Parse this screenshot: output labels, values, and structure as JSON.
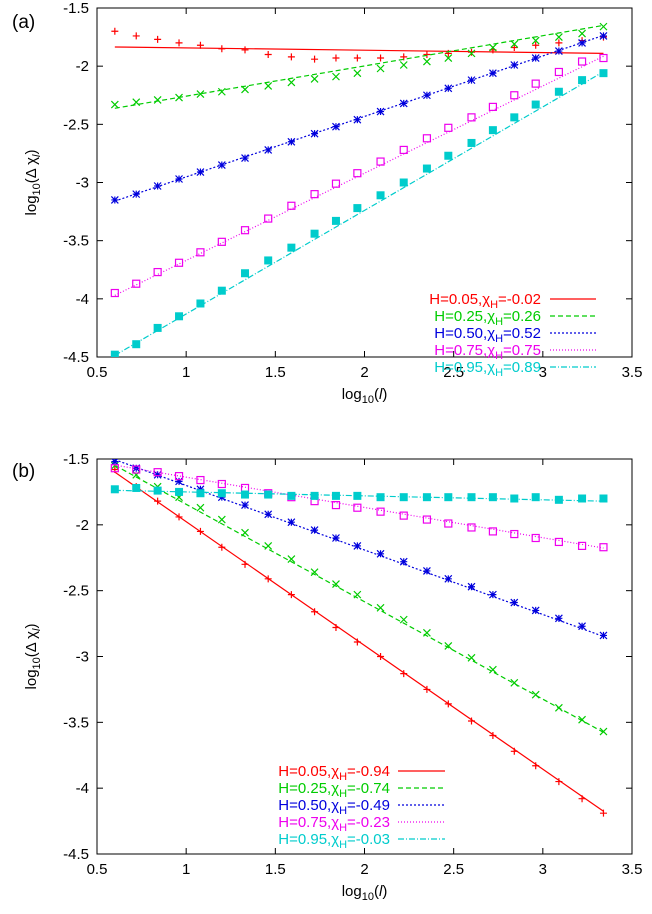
{
  "chart_data": [
    {
      "panel_label": "(a)",
      "type": "scatter",
      "xlabel": "log10(l)",
      "ylabel": "log10(Δ χl)",
      "xlim": [
        0.5,
        3.5
      ],
      "ylim": [
        -4.5,
        -1.5
      ],
      "xticks": [
        "0.5",
        "1",
        "1.5",
        "2",
        "2.5",
        "3",
        "3.5"
      ],
      "yticks": [
        "-1.5",
        "-2",
        "-2.5",
        "-3",
        "-3.5",
        "-4",
        "-4.5"
      ],
      "legend_position": "bottom-right",
      "grid": false,
      "x": [
        0.6,
        0.72,
        0.84,
        0.96,
        1.08,
        1.2,
        1.33,
        1.46,
        1.59,
        1.72,
        1.84,
        1.96,
        2.09,
        2.22,
        2.35,
        2.47,
        2.6,
        2.72,
        2.84,
        2.96,
        3.09,
        3.22,
        3.34
      ],
      "series": [
        {
          "label": "H=0.05,",
          "chi": "χ",
          "sub": "H",
          "value": "=-0.02",
          "color": "#ff0000",
          "marker": "plus",
          "dash": "",
          "fit": [
            -1.823,
            -0.02
          ],
          "values": [
            -1.7,
            -1.74,
            -1.77,
            -1.8,
            -1.82,
            -1.85,
            -1.86,
            -1.9,
            -1.92,
            -1.94,
            -1.93,
            -1.93,
            -1.93,
            -1.92,
            -1.9,
            -1.89,
            -1.88,
            -1.86,
            -1.84,
            -1.82,
            -1.8,
            -1.78,
            -1.75
          ]
        },
        {
          "label": "H=0.25,",
          "chi": "χ",
          "sub": "H",
          "value": "=0.26",
          "color": "#00cc00",
          "marker": "cross",
          "dash": "5,3",
          "fit": [
            -2.518,
            0.26
          ],
          "values": [
            -2.33,
            -2.31,
            -2.29,
            -2.27,
            -2.24,
            -2.22,
            -2.2,
            -2.17,
            -2.14,
            -2.11,
            -2.09,
            -2.06,
            -2.02,
            -1.99,
            -1.96,
            -1.93,
            -1.89,
            -1.84,
            -1.81,
            -1.78,
            -1.75,
            -1.72,
            -1.66
          ]
        },
        {
          "label": "H=0.50,",
          "chi": "χ",
          "sub": "H",
          "value": "=0.52",
          "color": "#0000dd",
          "marker": "star",
          "dash": "2,2",
          "fit": [
            -3.472,
            0.52
          ],
          "values": [
            -3.15,
            -3.1,
            -3.03,
            -2.97,
            -2.91,
            -2.85,
            -2.79,
            -2.72,
            -2.65,
            -2.58,
            -2.52,
            -2.46,
            -2.39,
            -2.32,
            -2.25,
            -2.19,
            -2.12,
            -2.06,
            -1.99,
            -1.93,
            -1.87,
            -1.8,
            -1.74
          ]
        },
        {
          "label": "H=0.75,",
          "chi": "χ",
          "sub": "H",
          "value": "=0.75",
          "color": "#ee00ee",
          "marker": "square",
          "dash": "1,2",
          "fit": [
            -4.42,
            0.75
          ],
          "values": [
            -3.95,
            -3.87,
            -3.77,
            -3.69,
            -3.6,
            -3.51,
            -3.41,
            -3.31,
            -3.2,
            -3.1,
            -3.01,
            -2.92,
            -2.82,
            -2.72,
            -2.62,
            -2.53,
            -2.44,
            -2.35,
            -2.25,
            -2.15,
            -2.05,
            -1.96,
            -1.93
          ]
        },
        {
          "label": "H=0.95,",
          "chi": "χ",
          "sub": "H",
          "value": "=0.89",
          "color": "#00cccc",
          "marker": "filledsquare",
          "dash": "6,2,1,2",
          "fit": [
            -5.02,
            0.89
          ],
          "values": [
            -4.48,
            -4.39,
            -4.25,
            -4.15,
            -4.04,
            -3.93,
            -3.78,
            -3.67,
            -3.56,
            -3.44,
            -3.33,
            -3.22,
            -3.11,
            -3.0,
            -2.88,
            -2.77,
            -2.66,
            -2.55,
            -2.44,
            -2.33,
            -2.22,
            -2.12,
            -2.06
          ]
        }
      ]
    },
    {
      "panel_label": "(b)",
      "type": "scatter",
      "xlabel": "log10(l)",
      "ylabel": "log10(Δ χl)",
      "xlim": [
        0.5,
        3.5
      ],
      "ylim": [
        -4.5,
        -1.5
      ],
      "xticks": [
        "0.5",
        "1",
        "1.5",
        "2",
        "2.5",
        "3",
        "3.5"
      ],
      "yticks": [
        "-1.5",
        "-2",
        "-2.5",
        "-3",
        "-3.5",
        "-4",
        "-4.5"
      ],
      "legend_position": "bottom-center",
      "grid": false,
      "x": [
        0.6,
        0.72,
        0.84,
        0.96,
        1.08,
        1.2,
        1.33,
        1.46,
        1.59,
        1.72,
        1.84,
        1.96,
        2.09,
        2.22,
        2.35,
        2.47,
        2.6,
        2.72,
        2.84,
        2.96,
        3.09,
        3.22,
        3.34
      ],
      "series": [
        {
          "label": "H=0.05,",
          "chi": "χ",
          "sub": "H",
          "value": "=-0.94",
          "color": "#ff0000",
          "marker": "plus",
          "dash": "",
          "fit": [
            -1.036,
            -0.94
          ],
          "values": [
            -1.58,
            -1.71,
            -1.82,
            -1.94,
            -2.05,
            -2.17,
            -2.3,
            -2.41,
            -2.53,
            -2.66,
            -2.78,
            -2.89,
            -3.0,
            -3.13,
            -3.25,
            -3.36,
            -3.49,
            -3.6,
            -3.72,
            -3.83,
            -3.95,
            -4.08,
            -4.19
          ]
        },
        {
          "label": "H=0.25,",
          "chi": "χ",
          "sub": "H",
          "value": "=-0.74",
          "color": "#00cc00",
          "marker": "cross",
          "dash": "5,3",
          "fit": [
            -1.104,
            -0.74
          ],
          "values": [
            -1.55,
            -1.62,
            -1.71,
            -1.79,
            -1.87,
            -1.96,
            -2.06,
            -2.16,
            -2.26,
            -2.36,
            -2.45,
            -2.53,
            -2.63,
            -2.72,
            -2.82,
            -2.92,
            -3.01,
            -3.1,
            -3.2,
            -3.29,
            -3.39,
            -3.48,
            -3.57
          ]
        },
        {
          "label": "H=0.50,",
          "chi": "χ",
          "sub": "H",
          "value": "=-0.49",
          "color": "#0000dd",
          "marker": "star",
          "dash": "2,2",
          "fit": [
            -1.211,
            -0.49
          ],
          "values": [
            -1.52,
            -1.57,
            -1.62,
            -1.67,
            -1.73,
            -1.79,
            -1.85,
            -1.92,
            -1.98,
            -2.04,
            -2.1,
            -2.16,
            -2.22,
            -2.28,
            -2.35,
            -2.41,
            -2.47,
            -2.53,
            -2.59,
            -2.65,
            -2.71,
            -2.77,
            -2.84
          ]
        },
        {
          "label": "H=0.75,",
          "chi": "χ",
          "sub": "H",
          "value": "=-0.23",
          "color": "#ee00ee",
          "marker": "square",
          "dash": "1,2",
          "fit": [
            -1.408,
            -0.23
          ],
          "values": [
            -1.57,
            -1.58,
            -1.6,
            -1.63,
            -1.66,
            -1.69,
            -1.72,
            -1.76,
            -1.79,
            -1.82,
            -1.85,
            -1.87,
            -1.9,
            -1.93,
            -1.96,
            -1.99,
            -2.02,
            -2.05,
            -2.07,
            -2.1,
            -2.13,
            -2.16,
            -2.17
          ]
        },
        {
          "label": "H=0.95,",
          "chi": "χ",
          "sub": "H",
          "value": "=-0.03",
          "color": "#00cccc",
          "marker": "filledsquare",
          "dash": "6,2,1,2",
          "fit": [
            -1.72,
            -0.03
          ],
          "values": [
            -1.73,
            -1.72,
            -1.74,
            -1.75,
            -1.76,
            -1.76,
            -1.77,
            -1.77,
            -1.78,
            -1.78,
            -1.78,
            -1.78,
            -1.79,
            -1.79,
            -1.79,
            -1.79,
            -1.79,
            -1.79,
            -1.8,
            -1.79,
            -1.81,
            -1.8,
            -1.8
          ]
        }
      ]
    }
  ]
}
